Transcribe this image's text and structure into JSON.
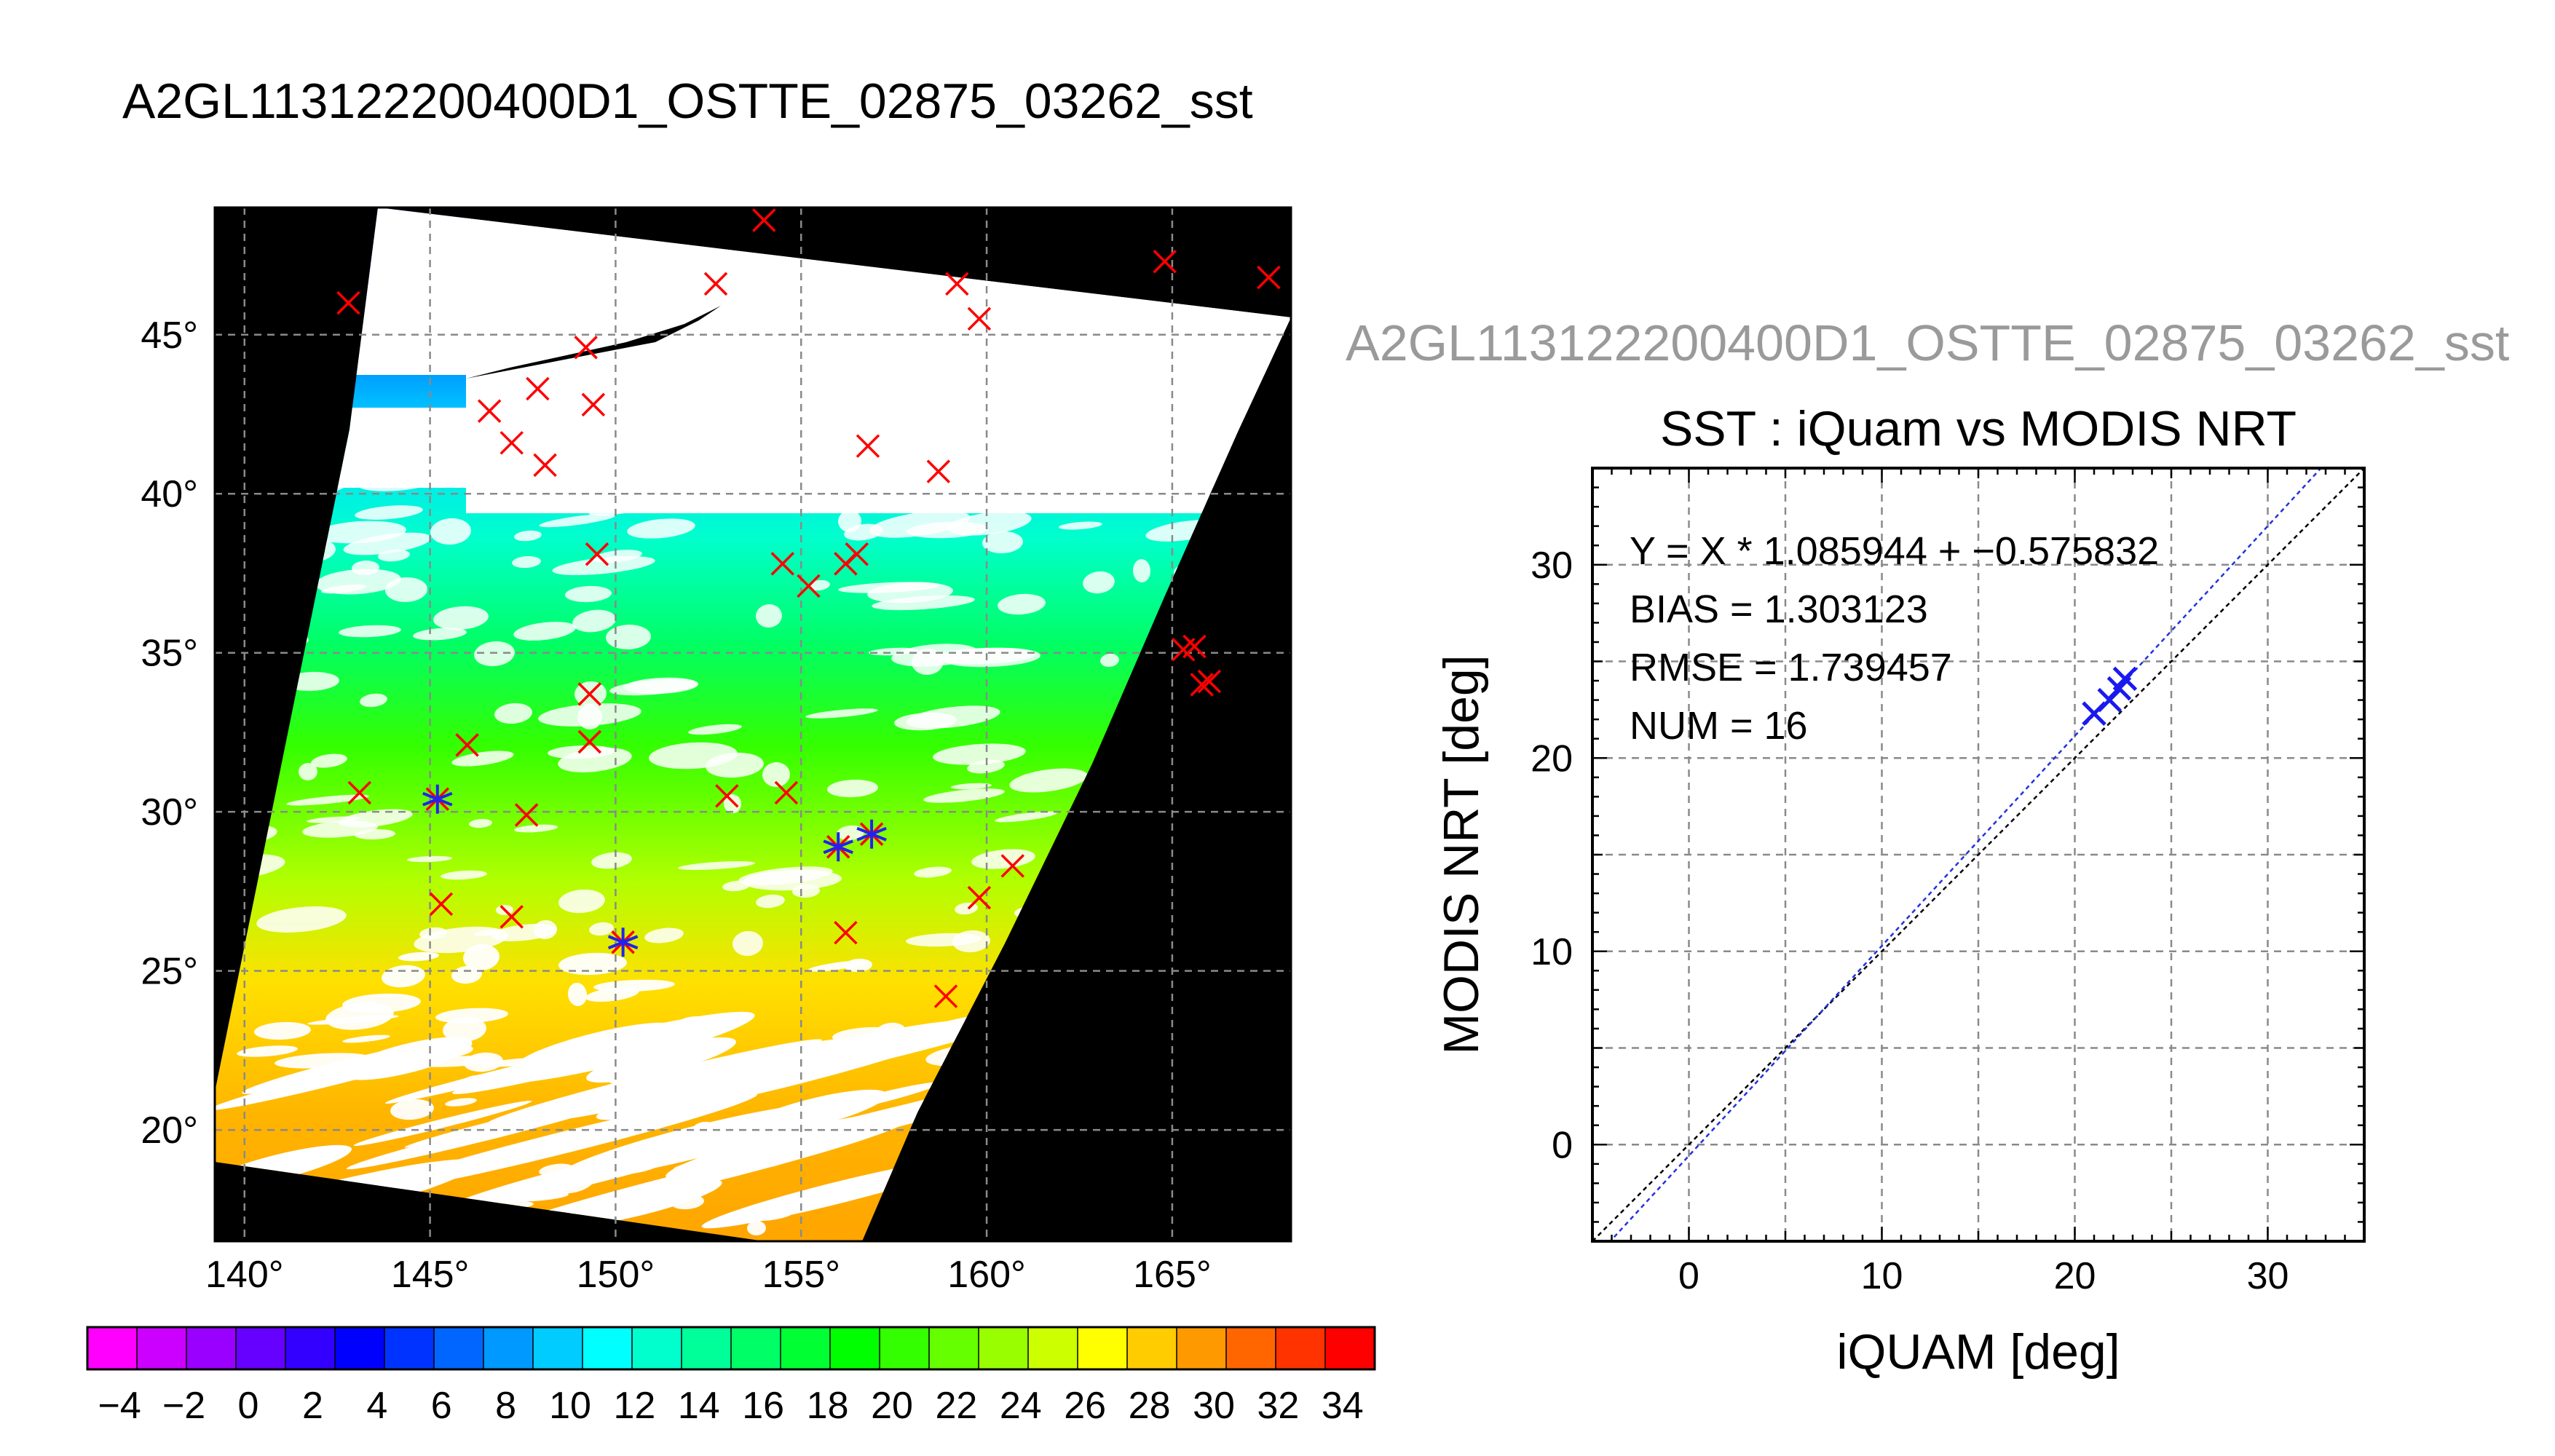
{
  "main_title": "A2GL113122200400D1_OSTTE_02875_03262_sst",
  "chart_data": [
    {
      "type": "map",
      "x_ticks": [
        "140°",
        "145°",
        "150°",
        "155°",
        "160°",
        "165°"
      ],
      "y_ticks": [
        "20°",
        "25°",
        "30°",
        "35°",
        "40°",
        "45°"
      ],
      "xlim": [
        139.2,
        168.2
      ],
      "ylim": [
        16.5,
        49.0
      ],
      "colorbar": {
        "range": [
          -5,
          35
        ],
        "labels": [
          "−4",
          "−2",
          "0",
          "2",
          "4",
          "6",
          "8",
          "10",
          "12",
          "14",
          "16",
          "18",
          "20",
          "22",
          "24",
          "26",
          "28",
          "30",
          "32",
          "34"
        ],
        "colors": [
          "#ff00ff",
          "#cc00ff",
          "#9900ff",
          "#6600ff",
          "#3300ff",
          "#0000ff",
          "#0033ff",
          "#0066ff",
          "#0099ff",
          "#00ccff",
          "#00ffff",
          "#00ffcc",
          "#00ff99",
          "#00ff66",
          "#00ff33",
          "#00ff00",
          "#33ff00",
          "#66ff00",
          "#99ff00",
          "#ccff00",
          "#ffff00",
          "#ffcc00",
          "#ff9900",
          "#ff6600",
          "#ff3300",
          "#ff0000"
        ]
      },
      "matchups_red": [
        [
          142.8,
          46.0
        ],
        [
          152.7,
          46.6
        ],
        [
          154.0,
          48.6
        ],
        [
          159.2,
          46.6
        ],
        [
          159.8,
          45.5
        ],
        [
          164.8,
          47.3
        ],
        [
          167.6,
          46.8
        ],
        [
          149.2,
          44.6
        ],
        [
          149.4,
          42.8
        ],
        [
          147.9,
          43.3
        ],
        [
          146.6,
          42.6
        ],
        [
          147.2,
          41.6
        ],
        [
          148.1,
          40.9
        ],
        [
          156.8,
          41.5
        ],
        [
          158.7,
          40.7
        ],
        [
          149.5,
          38.1
        ],
        [
          154.5,
          37.8
        ],
        [
          155.2,
          37.1
        ],
        [
          156.2,
          37.8
        ],
        [
          156.5,
          38.1
        ],
        [
          149.3,
          33.7
        ],
        [
          149.3,
          32.2
        ],
        [
          165.6,
          35.2
        ],
        [
          165.3,
          35.1
        ],
        [
          165.8,
          34.0
        ],
        [
          166.0,
          34.1
        ],
        [
          143.1,
          30.6
        ],
        [
          145.2,
          30.4
        ],
        [
          146.0,
          32.1
        ],
        [
          147.6,
          29.9
        ],
        [
          153.0,
          30.5
        ],
        [
          154.6,
          30.6
        ],
        [
          156.0,
          28.9
        ],
        [
          156.9,
          29.3
        ],
        [
          160.7,
          28.3
        ],
        [
          159.8,
          27.3
        ],
        [
          145.3,
          27.1
        ],
        [
          147.2,
          26.7
        ],
        [
          150.2,
          25.9
        ],
        [
          156.2,
          26.2
        ],
        [
          158.9,
          24.2
        ]
      ],
      "matchups_blue": [
        [
          145.2,
          30.4
        ],
        [
          150.2,
          25.9
        ],
        [
          156.9,
          29.3
        ],
        [
          156.0,
          28.9
        ]
      ]
    },
    {
      "type": "scatter",
      "header": "A2GL113122200400D1_OSTTE_02875_03262_sst",
      "title": "SST : iQuam vs MODIS NRT",
      "xlabel": "iQUAM [deg]",
      "ylabel": "MODIS NRT [deg]",
      "xlim": [
        -5,
        35
      ],
      "ylim": [
        -5,
        35
      ],
      "x_ticks": [
        0,
        10,
        20,
        30
      ],
      "y_ticks": [
        0,
        10,
        20,
        30
      ],
      "annotations": [
        "Y = X * 1.085944 + −0.575832",
        "BIAS = 1.303123",
        "RMSE = 1.739457",
        "NUM = 16"
      ],
      "fit": {
        "slope": 1.085944,
        "intercept": -0.575832
      },
      "points": [
        [
          21.0,
          22.3
        ],
        [
          21.8,
          23.0
        ],
        [
          22.3,
          23.6
        ],
        [
          22.6,
          24.1
        ]
      ]
    }
  ]
}
